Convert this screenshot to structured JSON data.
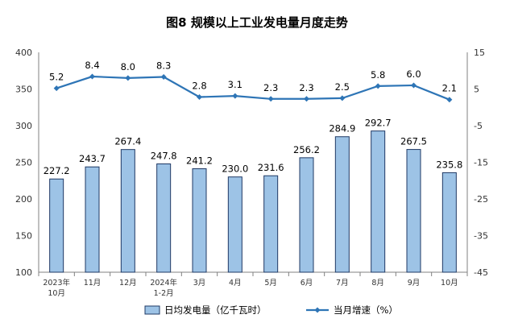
{
  "chart_data": {
    "type": "bar+line",
    "title": "图8  规模以上工业发电量月度走势",
    "categories": [
      [
        "2023年",
        "10月"
      ],
      [
        "11月"
      ],
      [
        "12月"
      ],
      [
        "2024年",
        "1-2月"
      ],
      [
        "3月"
      ],
      [
        "4月"
      ],
      [
        "5月"
      ],
      [
        "6月"
      ],
      [
        "7月"
      ],
      [
        "8月"
      ],
      [
        "9月"
      ],
      [
        "10月"
      ]
    ],
    "series": [
      {
        "name": "日均发电量（亿千瓦时）",
        "type": "bar",
        "axis": "left",
        "color": "#9DC3E6",
        "stroke": "#1F3864",
        "values": [
          227.2,
          243.7,
          267.4,
          247.8,
          241.2,
          230.0,
          231.6,
          256.2,
          284.9,
          292.7,
          267.5,
          235.8
        ],
        "labels": [
          "227.2",
          "243.7",
          "267.4",
          "247.8",
          "241.2",
          "230.0",
          "231.6",
          "256.2",
          "284.9",
          "292.7",
          "267.5",
          "235.8"
        ]
      },
      {
        "name": "当月增速（%）",
        "type": "line",
        "axis": "right",
        "color": "#2E75B6",
        "values": [
          5.2,
          8.4,
          8.0,
          8.3,
          2.8,
          3.1,
          2.3,
          2.3,
          2.5,
          5.8,
          6.0,
          2.1
        ],
        "labels": [
          "5.2",
          "8.4",
          "8.0",
          "8.3",
          "2.8",
          "3.1",
          "2.3",
          "2.3",
          "2.5",
          "5.8",
          "6.0",
          "2.1"
        ]
      }
    ],
    "y_left": {
      "min": 100,
      "max": 400,
      "ticks": [
        "100",
        "150",
        "200",
        "250",
        "300",
        "350",
        "400"
      ]
    },
    "y_right": {
      "min": -45,
      "max": 15,
      "ticks": [
        "-45",
        "-35",
        "-25",
        "-15",
        "-5",
        "5",
        "15"
      ]
    },
    "grid": false,
    "legend_position": "bottom"
  }
}
